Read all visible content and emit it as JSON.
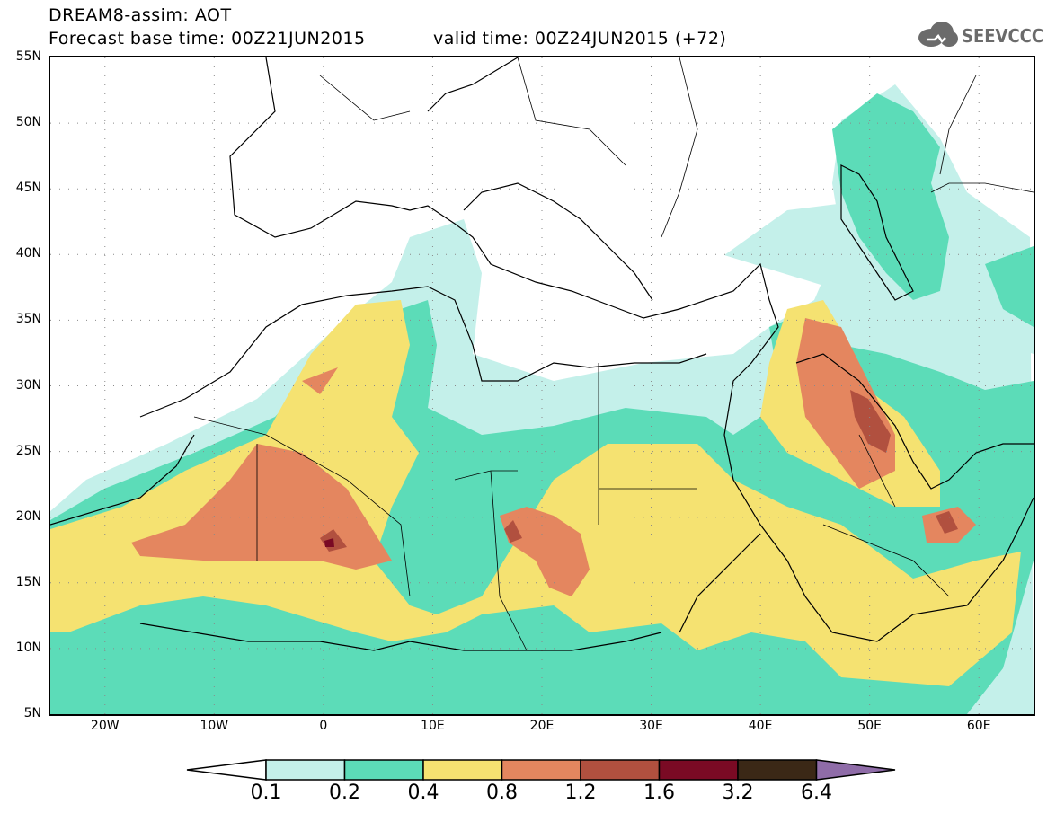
{
  "header": {
    "title": "DREAM8-assim: AOT",
    "forecast_line": "Forecast base time: 00Z21JUN2015",
    "valid_line": "valid time: 00Z24JUN2015 (+72)",
    "logo_text": "SEEVCCC"
  },
  "map": {
    "lat_labels": [
      "55N",
      "50N",
      "45N",
      "40N",
      "35N",
      "30N",
      "25N",
      "20N",
      "15N",
      "10N",
      "5N"
    ],
    "lon_labels": [
      "20W",
      "10W",
      "0",
      "10E",
      "20E",
      "30E",
      "40E",
      "50E",
      "60E"
    ],
    "extent": {
      "lon_min": -25,
      "lon_max": 65,
      "lat_min": 5,
      "lat_max": 55
    }
  },
  "colorbar": {
    "labels": [
      "0.1",
      "0.2",
      "0.4",
      "0.8",
      "1.2",
      "1.6",
      "3.2",
      "6.4"
    ],
    "colors": [
      "#ffffff",
      "#c4f0ea",
      "#5cdcb8",
      "#f5e271",
      "#e4865f",
      "#b1503f",
      "#7a0a24",
      "#3b2816",
      "#8f6ca8"
    ]
  }
}
